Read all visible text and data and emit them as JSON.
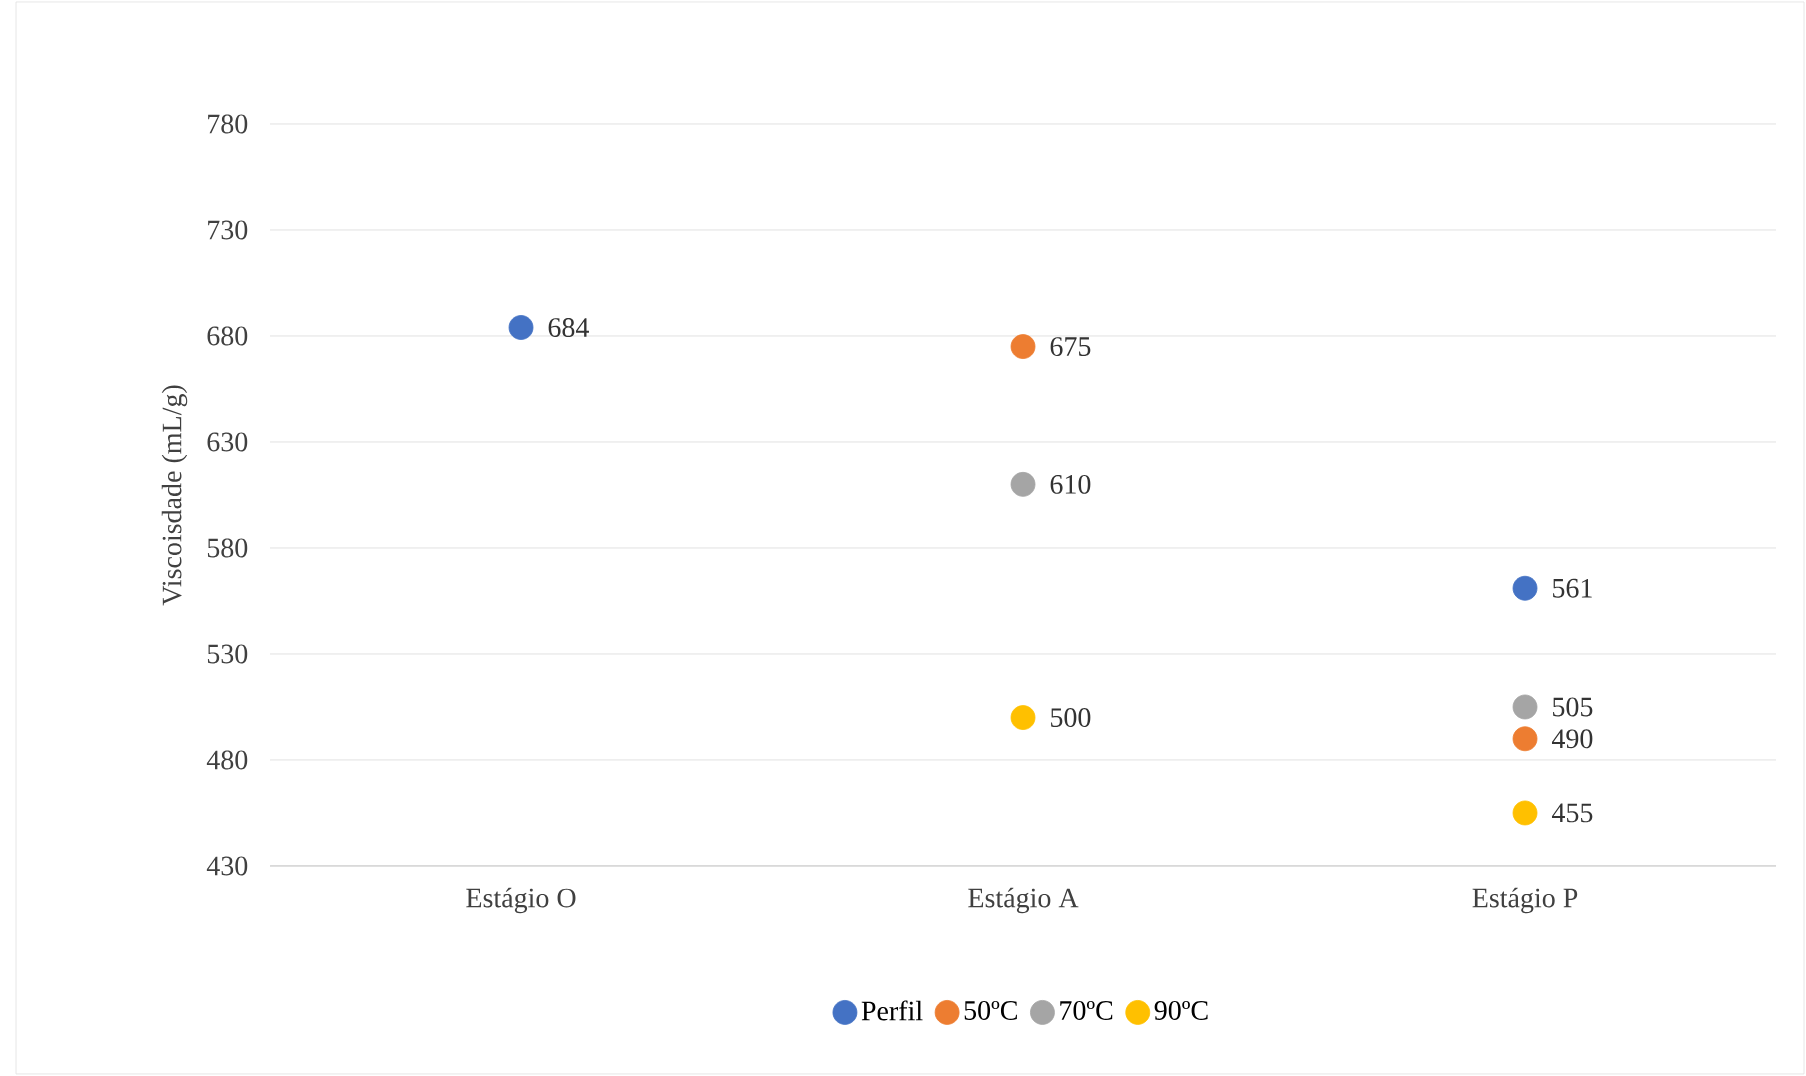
{
  "chart_data": {
    "type": "scatter",
    "ylabel": "Viscoisdade (mL/g)",
    "categories": [
      "Estágio O",
      "Estágio A",
      "Estágio P"
    ],
    "series": [
      {
        "name": "Perfil",
        "color": "#4472c4",
        "values": [
          684,
          null,
          561
        ]
      },
      {
        "name": "50ºC",
        "color": "#ed7d31",
        "values": [
          null,
          675,
          490
        ]
      },
      {
        "name": "70ºC",
        "color": "#a5a5a5",
        "values": [
          null,
          610,
          505
        ]
      },
      {
        "name": "90ºC",
        "color": "#ffc000",
        "values": [
          null,
          500,
          455
        ]
      }
    ],
    "ylim": [
      430,
      780
    ],
    "yticks": [
      430,
      480,
      530,
      580,
      630,
      680,
      730,
      780
    ],
    "grid": "y",
    "legend": "bottom",
    "marker": "circle",
    "data_labels": true
  }
}
